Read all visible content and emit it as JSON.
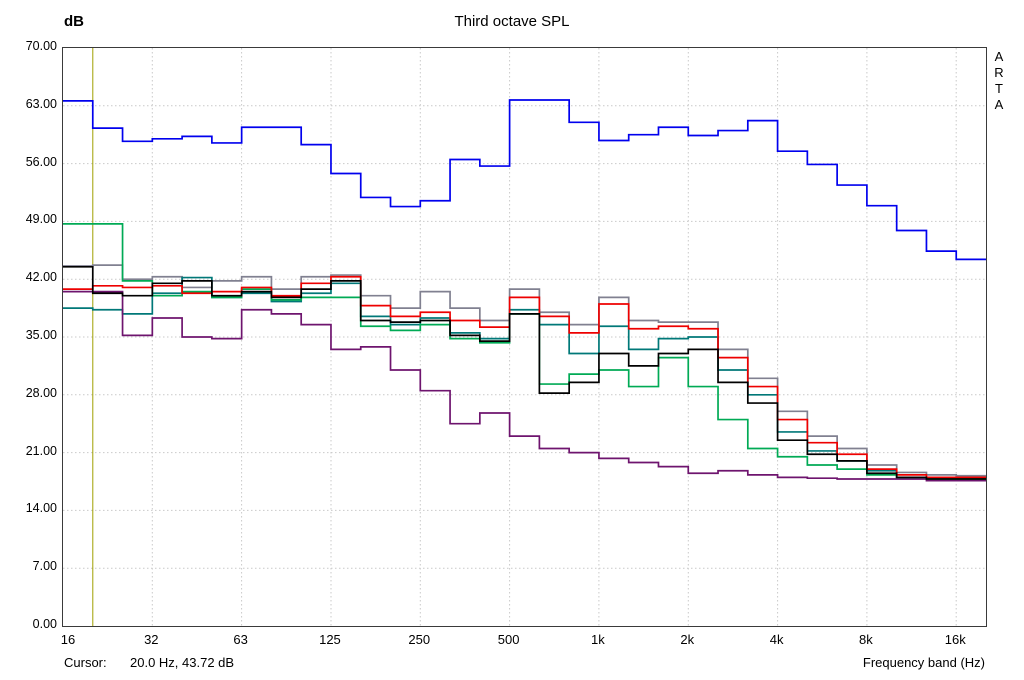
{
  "chart": {
    "y_unit": "dB",
    "title": "Third octave SPL",
    "watermark": [
      "A",
      "R",
      "T",
      "A"
    ]
  },
  "footer": {
    "cursor_label": "Cursor:",
    "cursor_value": "20.0 Hz, 43.72 dB",
    "xlabel": "Frequency band (Hz)"
  },
  "chart_data": {
    "type": "line",
    "subtype": "step-staircase-third-octave-bands",
    "title": "Third octave SPL",
    "ylabel": "dB",
    "xlabel": "Frequency band (Hz)",
    "ylim": [
      0,
      70
    ],
    "y_ticks": [
      "70.00",
      "63.00",
      "56.00",
      "49.00",
      "42.00",
      "35.00",
      "28.00",
      "21.00",
      "14.00",
      "7.00",
      "0.00"
    ],
    "x_tick_labels": [
      "16",
      "32",
      "63",
      "125",
      "250",
      "500",
      "1k",
      "2k",
      "4k",
      "8k",
      "16k"
    ],
    "x_tick_band_indexes": [
      0,
      3,
      6,
      9,
      12,
      15,
      18,
      21,
      24,
      27,
      30
    ],
    "categories": [
      "16",
      "20",
      "25",
      "31.5",
      "40",
      "50",
      "63",
      "80",
      "100",
      "125",
      "160",
      "200",
      "250",
      "315",
      "400",
      "500",
      "630",
      "800",
      "1k",
      "1.25k",
      "1.6k",
      "2k",
      "2.5k",
      "3.15k",
      "4k",
      "5k",
      "6.3k",
      "8k",
      "10k",
      "12.5k",
      "16k"
    ],
    "grid": true,
    "legend": "none",
    "cursor": {
      "hz_label": "20.0 Hz",
      "db_label": "43.72 dB",
      "band_index": 1,
      "color": "#a0a000"
    },
    "series": [
      {
        "name": "gray",
        "color": "#808090",
        "values": [
          43.6,
          43.7,
          42.0,
          42.3,
          41.0,
          41.8,
          42.3,
          40.8,
          42.3,
          42.5,
          40.0,
          38.5,
          40.5,
          38.5,
          37.0,
          40.8,
          38.0,
          36.5,
          39.8,
          37.0,
          36.8,
          36.8,
          33.5,
          30.0,
          26.0,
          23.0,
          21.5,
          19.5,
          18.6,
          18.3,
          18.2
        ]
      },
      {
        "name": "teal",
        "color": "#007878",
        "values": [
          38.5,
          38.3,
          37.8,
          40.3,
          42.2,
          39.8,
          40.3,
          39.3,
          40.3,
          41.5,
          37.5,
          36.5,
          37.3,
          35.5,
          34.8,
          38.3,
          36.5,
          33.0,
          36.3,
          33.5,
          34.8,
          35.0,
          31.0,
          28.0,
          23.5,
          21.2,
          20.0,
          18.8,
          18.0,
          17.9,
          17.9
        ]
      },
      {
        "name": "purple",
        "color": "#6e146e",
        "values": [
          40.5,
          40.5,
          35.2,
          37.3,
          35.0,
          34.8,
          38.3,
          37.8,
          36.5,
          33.5,
          33.8,
          31.0,
          28.5,
          24.5,
          25.8,
          23.0,
          21.5,
          21.0,
          20.3,
          19.8,
          19.3,
          18.5,
          18.8,
          18.3,
          18.0,
          17.9,
          17.8,
          17.8,
          17.8,
          17.6,
          17.6
        ]
      },
      {
        "name": "green",
        "color": "#00aa55",
        "values": [
          48.7,
          48.7,
          41.8,
          40.0,
          40.5,
          39.8,
          40.8,
          39.5,
          39.8,
          39.8,
          36.3,
          35.8,
          36.5,
          34.8,
          34.3,
          37.8,
          29.3,
          30.5,
          31.0,
          29.0,
          32.5,
          29.0,
          25.0,
          21.5,
          20.5,
          19.5,
          19.0,
          18.3,
          18.0,
          17.8,
          17.8
        ]
      },
      {
        "name": "red",
        "color": "#ee0000",
        "values": [
          40.8,
          41.2,
          41.0,
          41.2,
          40.3,
          40.5,
          41.0,
          40.0,
          41.5,
          42.3,
          38.8,
          37.5,
          38.0,
          37.0,
          36.2,
          39.8,
          37.5,
          35.5,
          39.0,
          36.0,
          36.3,
          36.0,
          32.5,
          29.0,
          25.0,
          22.2,
          20.8,
          19.0,
          18.3,
          18.0,
          18.0
        ]
      },
      {
        "name": "black",
        "color": "#000000",
        "values": [
          43.5,
          40.3,
          40.0,
          41.5,
          41.8,
          40.0,
          40.5,
          39.8,
          40.8,
          41.8,
          37.0,
          36.8,
          37.0,
          35.2,
          34.5,
          37.8,
          28.2,
          29.5,
          33.0,
          31.5,
          33.0,
          33.5,
          29.5,
          27.0,
          22.5,
          20.8,
          20.0,
          18.5,
          18.0,
          17.8,
          17.8
        ]
      },
      {
        "name": "blue",
        "color": "#0000ee",
        "values": [
          63.6,
          60.3,
          58.7,
          59.0,
          59.3,
          58.5,
          60.4,
          60.4,
          58.3,
          54.8,
          51.9,
          50.8,
          51.5,
          56.5,
          55.7,
          63.7,
          63.7,
          61.0,
          58.8,
          59.5,
          60.4,
          59.4,
          60.0,
          61.2,
          57.5,
          55.9,
          53.4,
          50.9,
          47.9,
          45.4,
          44.4
        ]
      }
    ]
  }
}
